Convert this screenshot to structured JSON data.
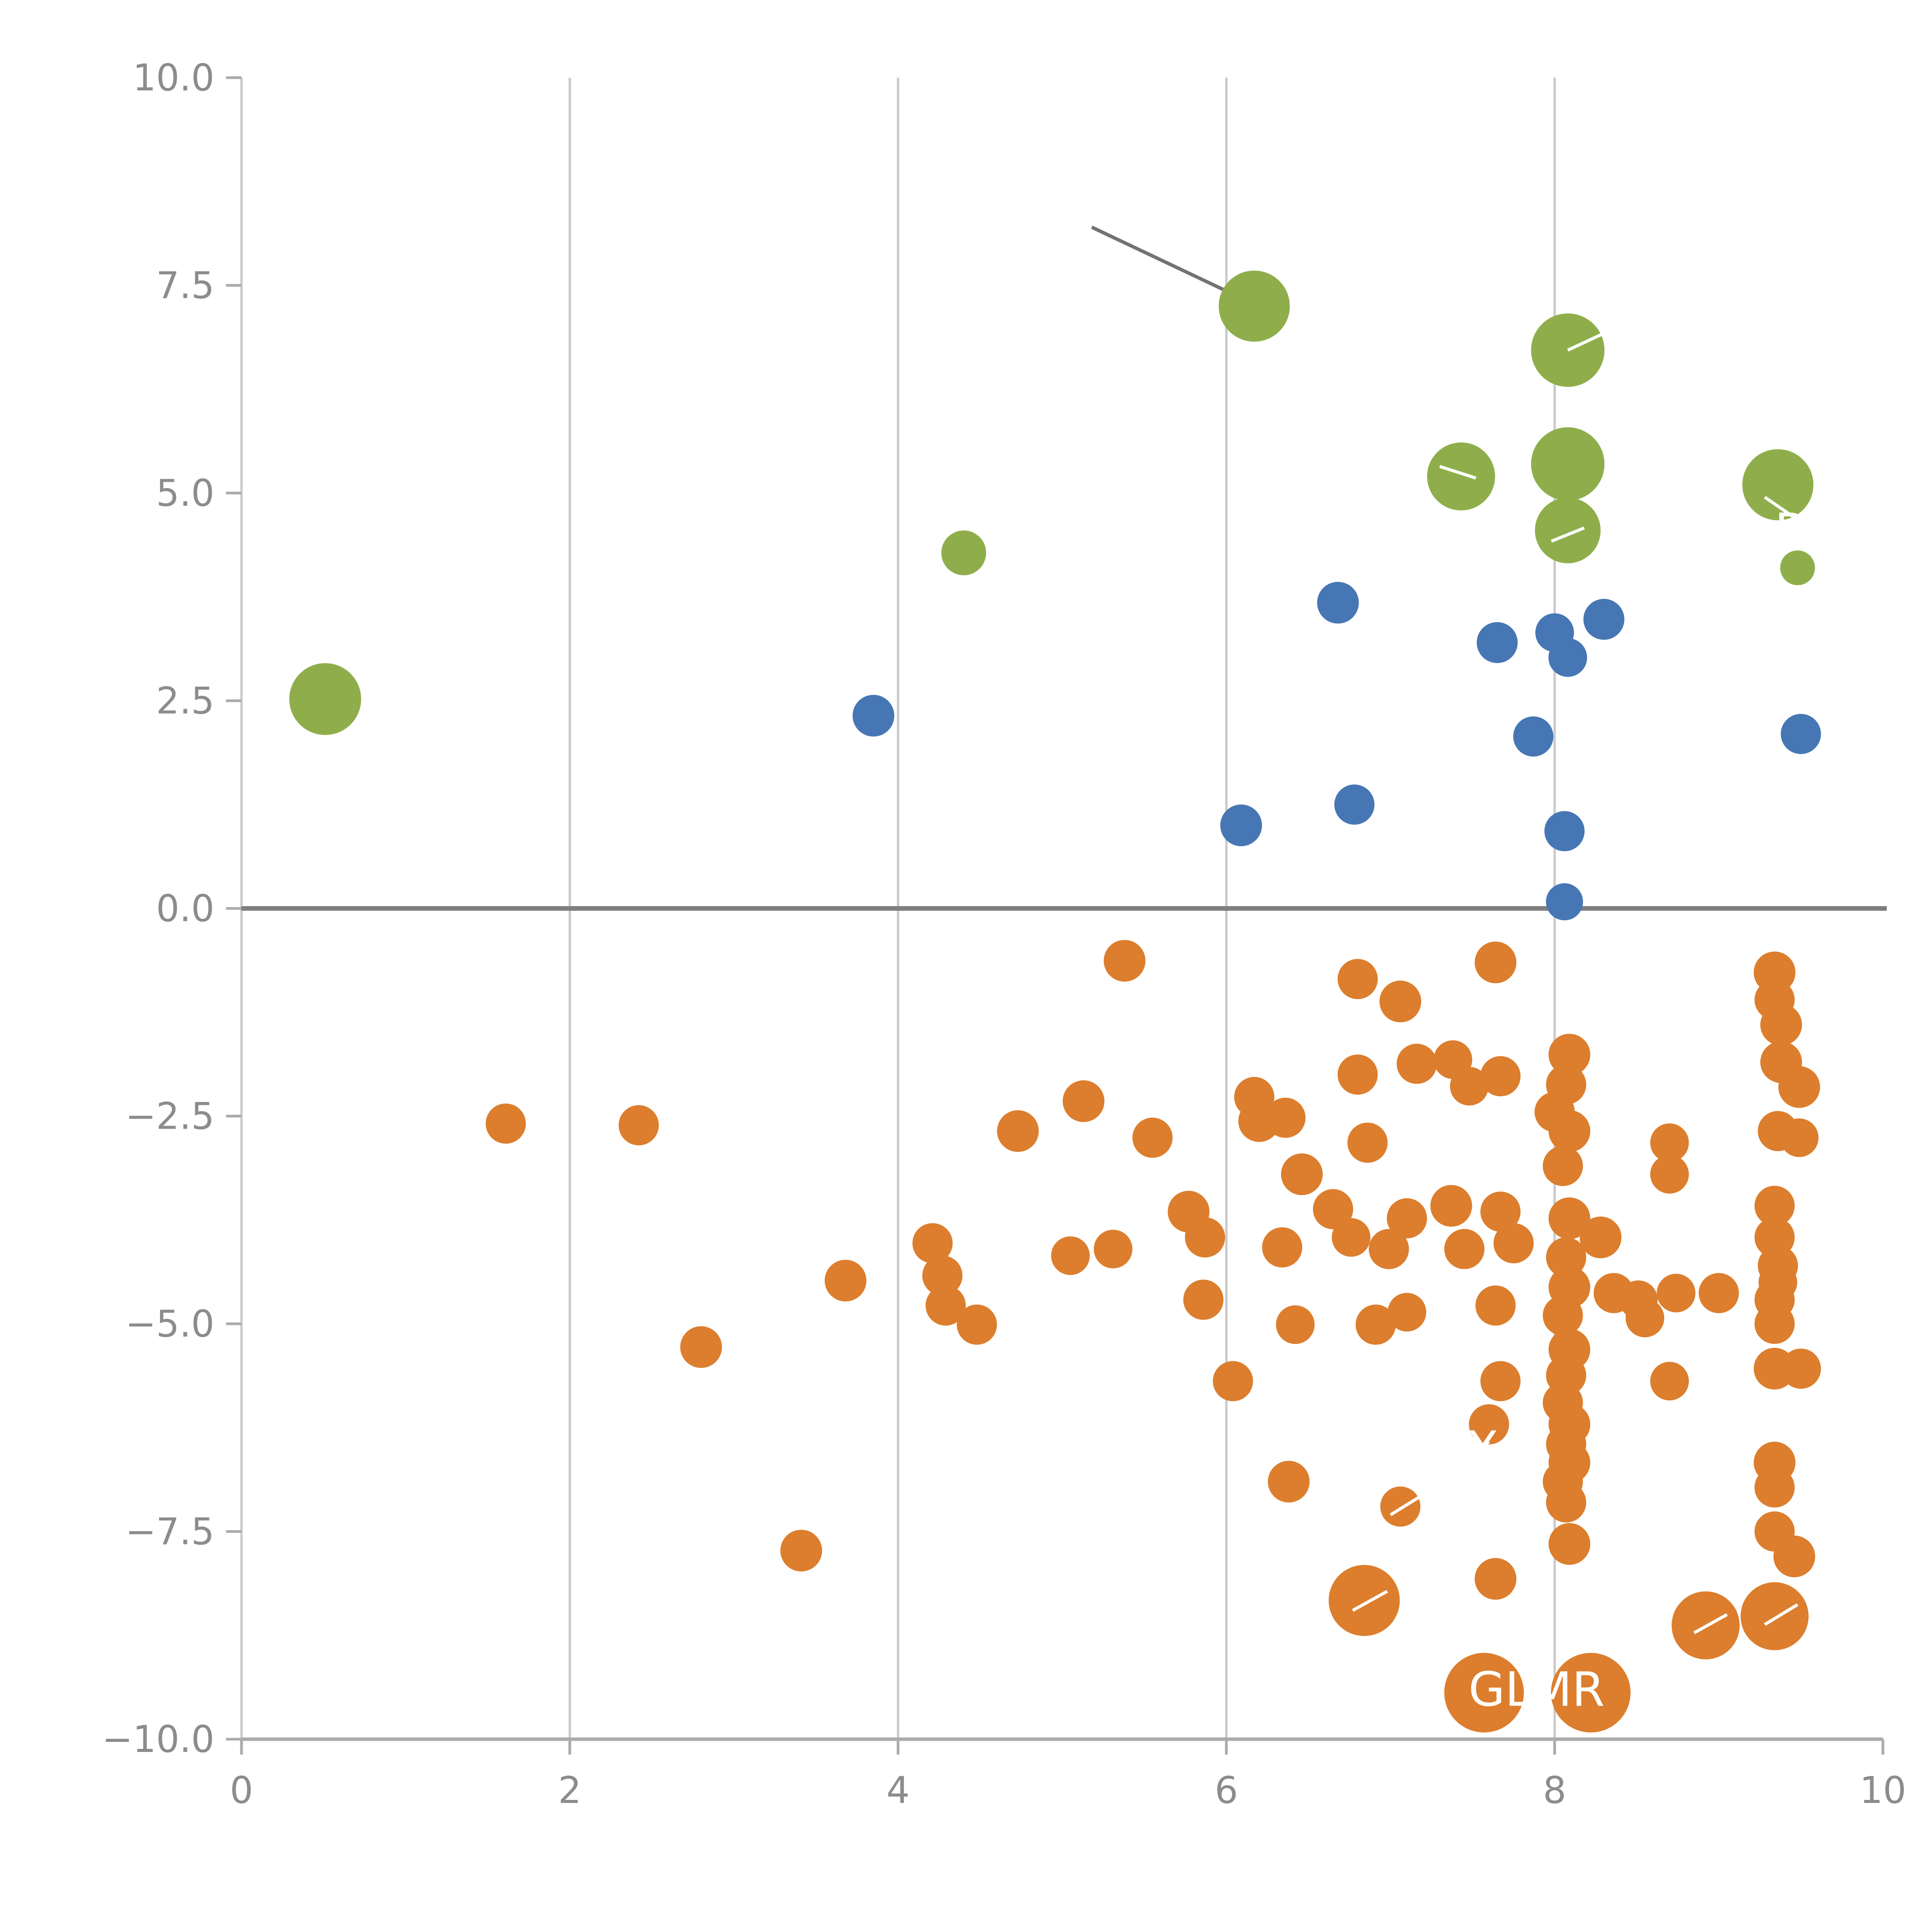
{
  "chart_data": {
    "type": "scatter",
    "title": "",
    "xlabel": "",
    "ylabel": "",
    "xlim": [
      0,
      10
    ],
    "ylim": [
      -10,
      10
    ],
    "grid": "vertical",
    "legend": "none",
    "zero_line": true,
    "x_ticks": [
      {
        "v": 0,
        "label": "0"
      },
      {
        "v": 2,
        "label": "2"
      },
      {
        "v": 4,
        "label": "4"
      },
      {
        "v": 6,
        "label": "6"
      },
      {
        "v": 8,
        "label": "8"
      },
      {
        "v": 10,
        "label": "10"
      }
    ],
    "y_ticks": [
      {
        "v": 10.0,
        "label": "10.0"
      },
      {
        "v": 7.5,
        "label": "7.5"
      },
      {
        "v": 5.0,
        "label": "5.0"
      },
      {
        "v": 2.5,
        "label": "2.5"
      },
      {
        "v": 0.0,
        "label": "0.0"
      },
      {
        "v": -2.5,
        "label": "−2.5"
      },
      {
        "v": -5.0,
        "label": "−5.0"
      },
      {
        "v": -7.5,
        "label": "−7.5"
      },
      {
        "v": -10.0,
        "label": "−10.0"
      }
    ],
    "x_gridlines": [
      0,
      2,
      4,
      6,
      8
    ],
    "colors": {
      "grid": "#c9c9c9",
      "axis": "#ababab",
      "tick_text": "#8c8c8c",
      "zero_line": "#7f7f7f",
      "leader_line": "#737373",
      "white": "#ffffff",
      "green": "#8fae4b",
      "blue": "#4677b4",
      "orange": "#dc7e2d"
    },
    "series": [
      {
        "name": "green",
        "color": "#8fae4b",
        "points": [
          [
            6.17,
            7.25,
            92
          ],
          [
            8.08,
            6.72,
            95
          ],
          [
            7.43,
            5.2,
            88
          ],
          [
            8.08,
            5.35,
            95
          ],
          [
            9.36,
            5.1,
            92
          ],
          [
            8.08,
            4.55,
            85
          ],
          [
            4.4,
            4.28,
            58
          ],
          [
            9.48,
            4.1,
            45
          ],
          [
            0.51,
            2.52,
            93
          ]
        ]
      },
      {
        "name": "blue",
        "color": "#4677b4",
        "points": [
          [
            6.68,
            3.68,
            54
          ],
          [
            7.65,
            3.2,
            53
          ],
          [
            8.0,
            3.32,
            50
          ],
          [
            8.08,
            3.02,
            50
          ],
          [
            8.3,
            3.48,
            53
          ],
          [
            3.85,
            2.32,
            54
          ],
          [
            7.87,
            2.07,
            52
          ],
          [
            9.5,
            2.1,
            52
          ],
          [
            6.09,
            1.0,
            54
          ],
          [
            6.78,
            1.25,
            52
          ],
          [
            8.06,
            0.93,
            52
          ],
          [
            8.06,
            0.08,
            48
          ]
        ]
      },
      {
        "name": "orange",
        "color": "#dc7e2d",
        "points": [
          [
            5.38,
            -0.63,
            54
          ],
          [
            7.64,
            -0.65,
            54
          ],
          [
            6.8,
            -0.85,
            52
          ],
          [
            9.34,
            -0.77,
            54
          ],
          [
            7.06,
            -1.12,
            54
          ],
          [
            9.34,
            -1.1,
            52
          ],
          [
            9.38,
            -1.4,
            54
          ],
          [
            7.16,
            -1.87,
            52
          ],
          [
            7.38,
            -1.82,
            50
          ],
          [
            8.09,
            -1.76,
            54
          ],
          [
            9.38,
            -1.85,
            54
          ],
          [
            9.49,
            -2.15,
            54
          ],
          [
            6.8,
            -2.0,
            52
          ],
          [
            7.48,
            -2.14,
            50
          ],
          [
            7.67,
            -2.02,
            52
          ],
          [
            8.07,
            -2.12,
            52
          ],
          [
            5.13,
            -2.32,
            54
          ],
          [
            6.17,
            -2.27,
            52
          ],
          [
            6.2,
            -2.56,
            54
          ],
          [
            6.36,
            -2.52,
            52
          ],
          [
            8.0,
            -2.45,
            52
          ],
          [
            8.09,
            -2.68,
            54
          ],
          [
            1.61,
            -2.59,
            52
          ],
          [
            2.42,
            -2.61,
            52
          ],
          [
            4.73,
            -2.68,
            54
          ],
          [
            5.55,
            -2.76,
            52
          ],
          [
            6.86,
            -2.82,
            52
          ],
          [
            8.7,
            -2.82,
            50
          ],
          [
            9.36,
            -2.68,
            52
          ],
          [
            9.49,
            -2.76,
            50
          ],
          [
            6.46,
            -3.2,
            54
          ],
          [
            8.05,
            -3.1,
            52
          ],
          [
            8.7,
            -3.2,
            50
          ],
          [
            5.77,
            -3.65,
            54
          ],
          [
            6.65,
            -3.62,
            52
          ],
          [
            7.1,
            -3.73,
            52
          ],
          [
            7.37,
            -3.58,
            54
          ],
          [
            7.67,
            -3.65,
            52
          ],
          [
            8.09,
            -3.73,
            54
          ],
          [
            9.34,
            -3.58,
            52
          ],
          [
            4.21,
            -4.03,
            52
          ],
          [
            4.27,
            -4.42,
            52
          ],
          [
            4.29,
            -4.78,
            52
          ],
          [
            3.68,
            -4.48,
            54
          ],
          [
            5.05,
            -4.18,
            50
          ],
          [
            5.31,
            -4.1,
            50
          ],
          [
            5.87,
            -3.96,
            52
          ],
          [
            6.34,
            -4.08,
            52
          ],
          [
            6.76,
            -3.96,
            50
          ],
          [
            6.99,
            -4.1,
            52
          ],
          [
            7.45,
            -4.1,
            52
          ],
          [
            7.75,
            -4.03,
            52
          ],
          [
            8.07,
            -4.2,
            52
          ],
          [
            8.28,
            -3.96,
            54
          ],
          [
            9.34,
            -3.96,
            52
          ],
          [
            9.36,
            -4.3,
            52
          ],
          [
            8.09,
            -4.56,
            54
          ],
          [
            8.36,
            -4.63,
            52
          ],
          [
            8.51,
            -4.71,
            50
          ],
          [
            8.74,
            -4.63,
            50
          ],
          [
            9.0,
            -4.63,
            52
          ],
          [
            9.34,
            -4.71,
            52
          ],
          [
            9.36,
            -4.5,
            50
          ],
          [
            5.86,
            -4.71,
            52
          ],
          [
            7.64,
            -4.78,
            52
          ],
          [
            8.55,
            -4.93,
            50
          ],
          [
            8.05,
            -4.9,
            52
          ],
          [
            4.48,
            -5.01,
            52
          ],
          [
            6.42,
            -5.01,
            50
          ],
          [
            6.91,
            -5.01,
            52
          ],
          [
            7.1,
            -4.86,
            50
          ],
          [
            9.34,
            -5.0,
            52
          ],
          [
            2.8,
            -5.28,
            54
          ],
          [
            8.09,
            -5.31,
            54
          ],
          [
            9.34,
            -5.54,
            54
          ],
          [
            9.5,
            -5.54,
            52
          ],
          [
            6.04,
            -5.69,
            52
          ],
          [
            7.67,
            -5.69,
            52
          ],
          [
            8.07,
            -5.62,
            52
          ],
          [
            8.05,
            -5.95,
            52
          ],
          [
            8.7,
            -5.69,
            50
          ],
          [
            7.6,
            -6.21,
            52
          ],
          [
            8.09,
            -6.21,
            54
          ],
          [
            8.07,
            -6.45,
            52
          ],
          [
            8.09,
            -6.67,
            54
          ],
          [
            8.05,
            -6.9,
            52
          ],
          [
            9.34,
            -6.67,
            54
          ],
          [
            9.34,
            -6.97,
            52
          ],
          [
            6.38,
            -6.9,
            54
          ],
          [
            7.06,
            -7.2,
            52
          ],
          [
            8.07,
            -7.15,
            52
          ],
          [
            8.09,
            -7.65,
            54
          ],
          [
            9.34,
            -7.5,
            52
          ],
          [
            9.46,
            -7.8,
            54
          ],
          [
            3.41,
            -7.73,
            54
          ],
          [
            7.64,
            -8.07,
            54
          ],
          [
            6.84,
            -8.33,
            92
          ],
          [
            8.92,
            -8.63,
            88
          ],
          [
            9.34,
            -8.52,
            88
          ],
          [
            7.57,
            -9.44,
            103
          ],
          [
            8.22,
            -9.44,
            103
          ]
        ]
      }
    ],
    "annotations": {
      "leader_line": {
        "x1": 5.18,
        "y1": 8.2,
        "x2": 6.12,
        "y2": 7.32,
        "color": "#737373"
      },
      "white_segments": [
        [
          7.3,
          5.32,
          7.52,
          5.18
        ],
        [
          8.08,
          6.72,
          8.33,
          6.95
        ],
        [
          7.98,
          4.42,
          8.18,
          4.58
        ],
        [
          9.28,
          4.95,
          9.45,
          4.72
        ],
        [
          6.77,
          -8.45,
          6.98,
          -8.22
        ],
        [
          8.85,
          -8.72,
          9.05,
          -8.5
        ],
        [
          9.28,
          -8.62,
          9.48,
          -8.38
        ],
        [
          7.0,
          -7.3,
          7.18,
          -7.08
        ],
        [
          7.45,
          -6.6,
          7.6,
          -6.42
        ]
      ],
      "labels": [
        {
          "text": "GLMR",
          "x": 7.89,
          "y": -9.4,
          "color": "#ffffff"
        },
        {
          "text": "R",
          "x": 9.44,
          "y": 4.55,
          "color": "#ffffff"
        },
        {
          "text": "X",
          "x": 7.56,
          "y": -6.5,
          "color": "#ffffff"
        }
      ]
    }
  }
}
